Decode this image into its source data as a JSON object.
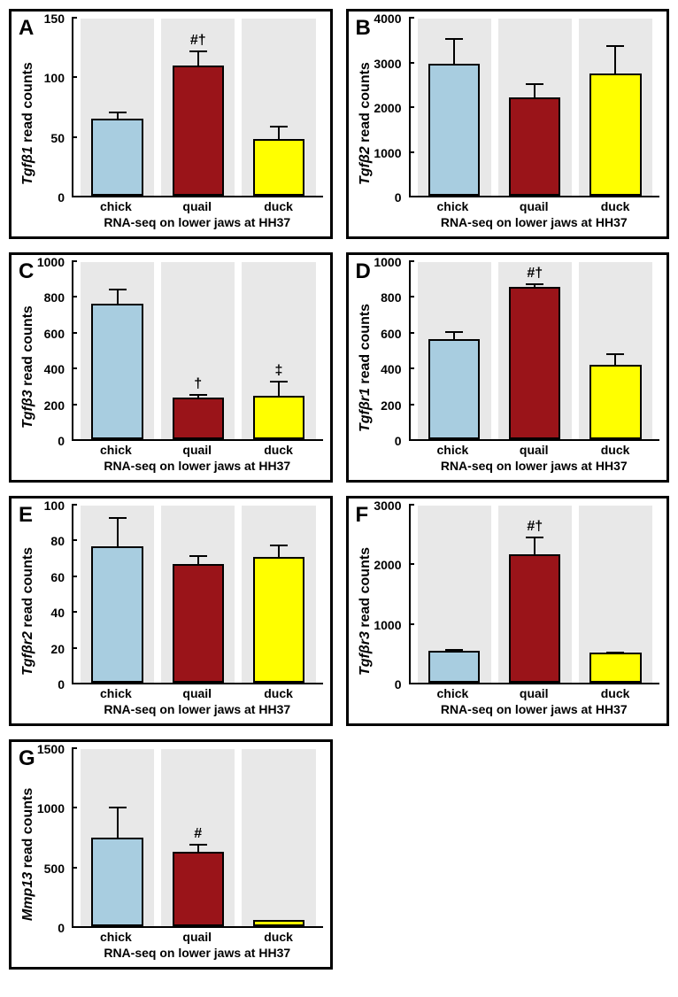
{
  "global": {
    "x_label": "RNA-seq on lower jaws at HH37",
    "categories": [
      "chick",
      "quail",
      "duck"
    ],
    "colors": {
      "chick": "#a8cde0",
      "quail": "#9a1419",
      "duck": "#ffff00",
      "border": "#000000",
      "panel_bg": "#e8e8e8",
      "background": "#ffffff"
    },
    "fonts": {
      "panel_label_size": 24,
      "axis_label_size": 16,
      "tick_size": 14
    }
  },
  "panels": [
    {
      "id": "A",
      "y_label_italic": "Tgfβ1",
      "y_label_rest": " read counts",
      "ylim": [
        0,
        150
      ],
      "ytick_step": 50,
      "values": [
        65,
        110,
        48
      ],
      "errors": [
        8,
        15,
        14
      ],
      "sig": [
        "",
        "#†",
        ""
      ]
    },
    {
      "id": "B",
      "y_label_italic": "Tgfβ2",
      "y_label_rest": " read counts",
      "ylim": [
        0,
        4000
      ],
      "ytick_step": 1000,
      "values": [
        2980,
        2230,
        2760
      ],
      "errors": [
        640,
        370,
        700
      ],
      "sig": [
        "",
        "",
        ""
      ]
    },
    {
      "id": "C",
      "y_label_italic": "Tgfβ3",
      "y_label_rest": " read counts",
      "ylim": [
        0,
        1000
      ],
      "ytick_step": 200,
      "values": [
        765,
        235,
        245
      ],
      "errors": [
        100,
        35,
        105
      ],
      "sig": [
        "",
        "†",
        "‡"
      ]
    },
    {
      "id": "D",
      "y_label_italic": "Tgfβr1",
      "y_label_rest": " read counts",
      "ylim": [
        0,
        1000
      ],
      "ytick_step": 200,
      "values": [
        565,
        860,
        420
      ],
      "errors": [
        55,
        30,
        80
      ],
      "sig": [
        "",
        "#†",
        ""
      ]
    },
    {
      "id": "E",
      "y_label_italic": "Tgfβr2",
      "y_label_rest": " read counts",
      "ylim": [
        0,
        100
      ],
      "ytick_step": 20,
      "values": [
        77,
        67,
        71
      ],
      "errors": [
        18,
        6,
        8
      ],
      "sig": [
        "",
        "",
        ""
      ]
    },
    {
      "id": "F",
      "y_label_italic": "Tgfβr3",
      "y_label_rest": " read counts",
      "ylim": [
        0,
        3000
      ],
      "ytick_step": 1000,
      "values": [
        540,
        2170,
        510
      ],
      "errors": [
        60,
        350,
        55
      ],
      "sig": [
        "",
        "#†",
        ""
      ]
    },
    {
      "id": "G",
      "y_label_italic": "Mmp13",
      "y_label_rest": " read counts",
      "ylim": [
        0,
        1500
      ],
      "ytick_step": 500,
      "values": [
        750,
        630,
        55
      ],
      "errors": [
        290,
        85,
        20
      ],
      "sig": [
        "",
        "#",
        ""
      ]
    }
  ]
}
